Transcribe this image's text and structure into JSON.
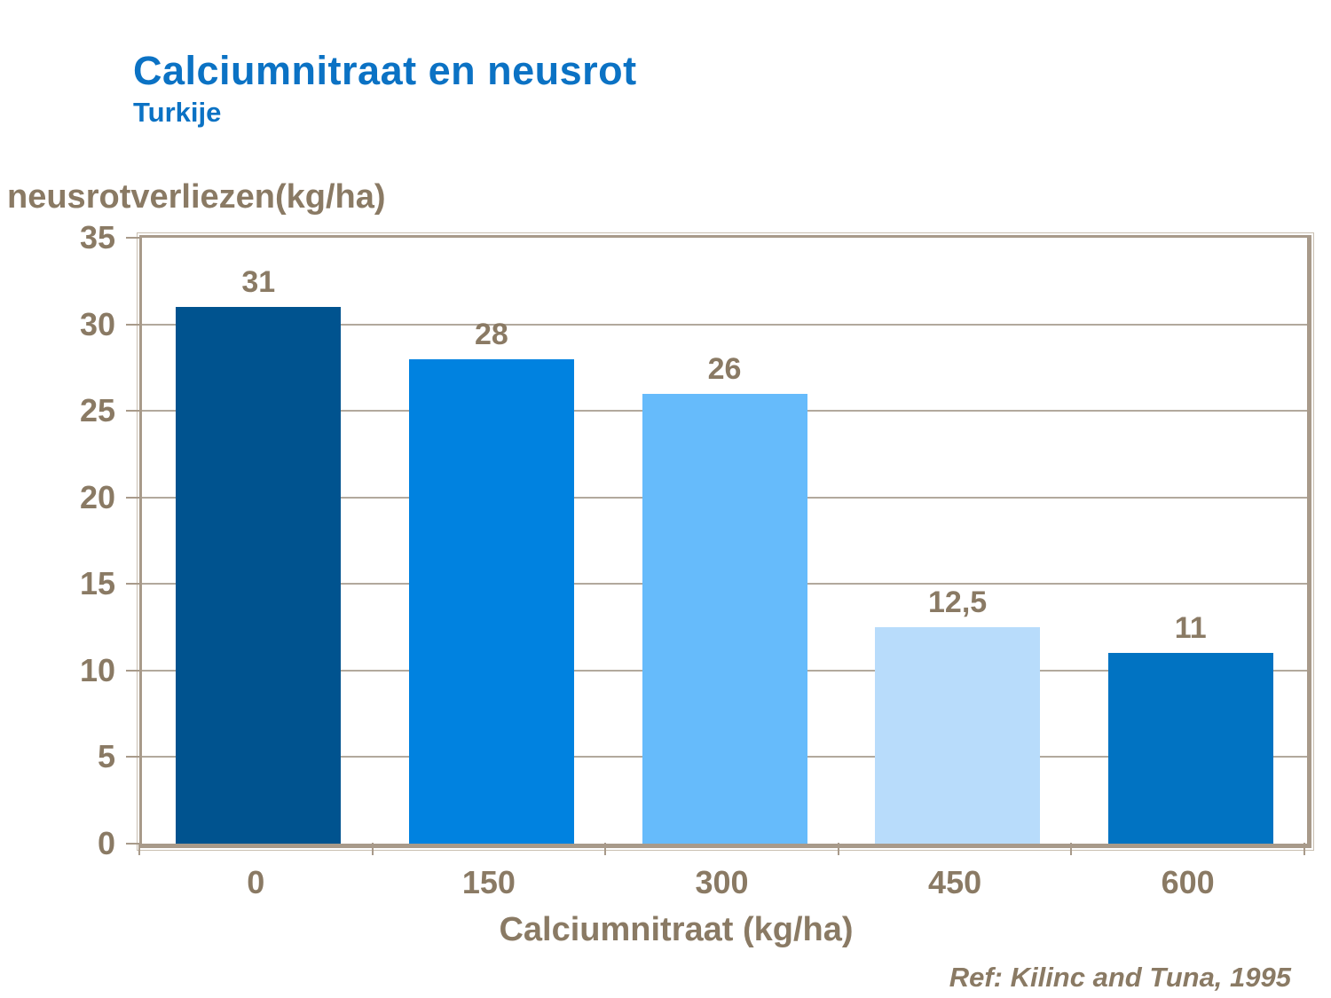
{
  "chart_data": {
    "type": "bar",
    "title": "Calciumnitraat en neusrot",
    "subtitle": "Turkije",
    "ylabel": "neusrotverliezen(kg/ha)",
    "xlabel": "Calciumnitraat (kg/ha)",
    "footnote": "Ref: Kilinc and Tuna, 1995",
    "categories": [
      "0",
      "150",
      "300",
      "450",
      "600"
    ],
    "values": [
      31,
      28,
      26,
      12.5,
      11
    ],
    "value_labels": [
      "31",
      "28",
      "26",
      "12,5",
      "11"
    ],
    "bar_colors": [
      "#00538f",
      "#0082e0",
      "#66bbfb",
      "#b8dcfb",
      "#0173c2"
    ],
    "ylim": [
      0,
      35
    ],
    "yticks": [
      0,
      5,
      10,
      15,
      20,
      25,
      30,
      35
    ],
    "grid": "horizontal",
    "legend": "none"
  },
  "colors": {
    "background": "#ffffff",
    "title_blue": "#0b72c4",
    "text_brown": "#8a7a64",
    "frame_tan": "#a89a8a",
    "gridline": "#b2a99d"
  }
}
